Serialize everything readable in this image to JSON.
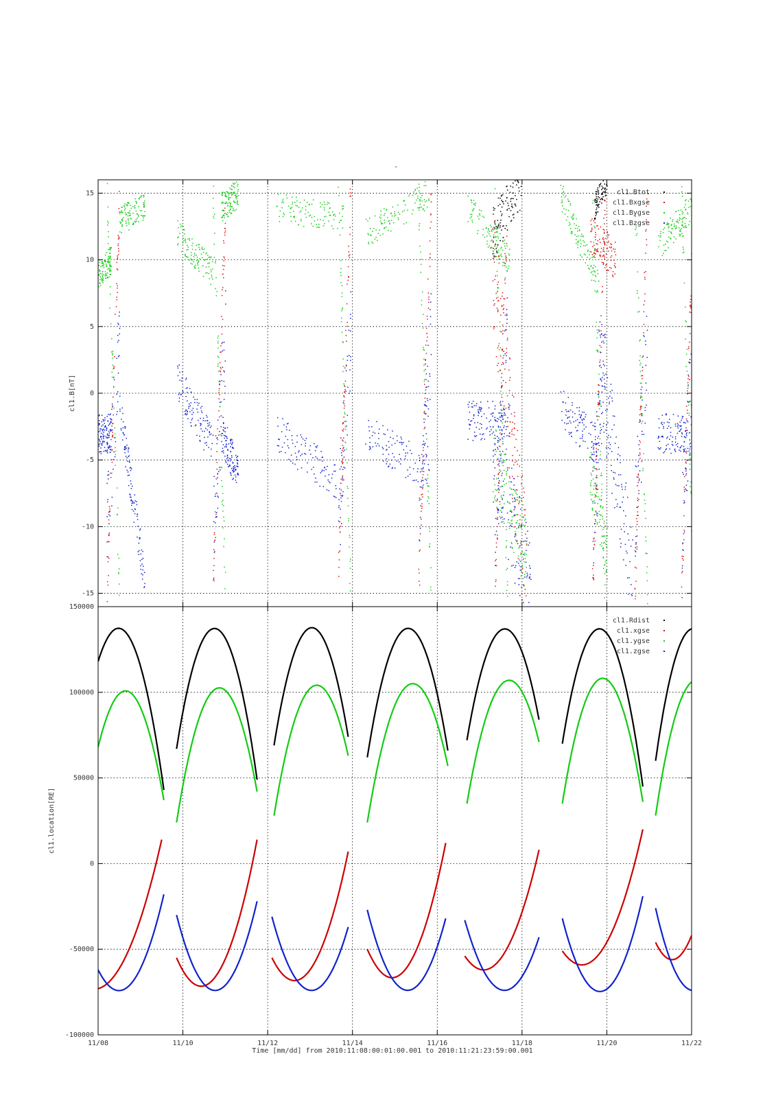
{
  "figure": {
    "title": "-",
    "xlabel": "Time [mm/dd]  from 2010:11:08:00:01:00.001  to  2010:11:21:23:59:00.001",
    "x_ticks": [
      "11/08",
      "11/10",
      "11/12",
      "11/14",
      "11/16",
      "11/18",
      "11/20",
      "11/22"
    ]
  },
  "chart_data": [
    {
      "type": "scatter",
      "title": "-",
      "ylabel": "cl1.B[nT]",
      "x_range_days": [
        8,
        22
      ],
      "ylim": [
        -16,
        16
      ],
      "y_ticks": [
        -15,
        -10,
        -5,
        0,
        5,
        10,
        15
      ],
      "grid": true,
      "legend_position": "top-right",
      "series": [
        {
          "name": "cl1.Btot",
          "color": "#000000"
        },
        {
          "name": "cl1.Bxgse",
          "color": "#dd1111"
        },
        {
          "name": "cl1.Bygse",
          "color": "#11cc11"
        },
        {
          "name": "cl1.Bzgse",
          "color": "#1122cc"
        }
      ],
      "note_values": {
        "Btot_hf_x": [
          17.3,
          18.0,
          19.7,
          20.0
        ],
        "green_segments_x": [
          [
            8.0,
            8.3
          ],
          [
            8.5,
            9.1
          ],
          [
            9.85,
            10.7
          ],
          [
            10.9,
            11.3
          ],
          [
            12.2,
            13.8
          ],
          [
            14.3,
            15.8
          ],
          [
            16.7,
            17.7
          ],
          [
            18.9,
            19.8
          ],
          [
            21.2,
            22.0
          ]
        ],
        "green_segment_y": [
          [
            9,
            10
          ],
          [
            13,
            14
          ],
          [
            12,
            9
          ],
          [
            14,
            15
          ],
          [
            14,
            13
          ],
          [
            12,
            15
          ],
          [
            14,
            10
          ],
          [
            15,
            8
          ],
          [
            11,
            14
          ]
        ],
        "blue_segment_y": [
          [
            -3,
            -3
          ],
          [
            -1,
            -14
          ],
          [
            1,
            -4
          ],
          [
            -3,
            -6
          ],
          [
            -3,
            -7
          ],
          [
            -3,
            -6
          ],
          [
            -2,
            -2
          ],
          [
            -1,
            -4
          ],
          [
            -3,
            -3
          ]
        ]
      }
    },
    {
      "type": "line",
      "title": "",
      "ylabel": "cl1.location[RE]",
      "x_range_days": [
        8,
        22
      ],
      "ylim": [
        -100000,
        150000
      ],
      "y_ticks": [
        -100000,
        -50000,
        0,
        50000,
        100000,
        150000
      ],
      "grid": true,
      "legend_position": "top-right",
      "series": [
        {
          "name": "cl1.Rdist",
          "color": "#000000",
          "segments": [
            [
              [
                8.0,
                118000
              ],
              [
                8.55,
                137000
              ],
              [
                9.55,
                43000
              ]
            ],
            [
              [
                9.85,
                67000
              ],
              [
                10.8,
                137000
              ],
              [
                11.75,
                49000
              ]
            ],
            [
              [
                12.15,
                69000
              ],
              [
                12.95,
                137000
              ],
              [
                13.9,
                74000
              ]
            ],
            [
              [
                14.35,
                62000
              ],
              [
                15.25,
                137000
              ],
              [
                16.25,
                66000
              ]
            ],
            [
              [
                16.7,
                72000
              ],
              [
                17.6,
                137000
              ],
              [
                18.4,
                84000
              ]
            ],
            [
              [
                18.95,
                70000
              ],
              [
                19.8,
                137000
              ],
              [
                20.85,
                45000
              ]
            ],
            [
              [
                21.15,
                60000
              ],
              [
                22.0,
                137000
              ],
              [
                22.3,
                130000
              ]
            ]
          ]
        },
        {
          "name": "cl1.xgse",
          "color": "#cc0000",
          "segments": [
            [
              [
                8.0,
                -73000
              ],
              [
                8.3,
                -68000
              ],
              [
                9.5,
                14000
              ]
            ],
            [
              [
                9.85,
                -55000
              ],
              [
                10.25,
                -70000
              ],
              [
                11.75,
                14000
              ]
            ],
            [
              [
                12.1,
                -55000
              ],
              [
                12.55,
                -68000
              ],
              [
                13.9,
                7000
              ]
            ],
            [
              [
                14.35,
                -50000
              ],
              [
                14.75,
                -65000
              ],
              [
                16.2,
                12000
              ]
            ],
            [
              [
                16.65,
                -54000
              ],
              [
                17.05,
                -62000
              ],
              [
                18.4,
                8000
              ]
            ],
            [
              [
                18.95,
                -51000
              ],
              [
                19.35,
                -59000
              ],
              [
                20.85,
                20000
              ]
            ],
            [
              [
                21.15,
                -46000
              ],
              [
                21.5,
                -56000
              ],
              [
                22.0,
                -42000
              ]
            ]
          ]
        },
        {
          "name": "cl1.ygse",
          "color": "#11cc11",
          "segments": [
            [
              [
                8.0,
                68000
              ],
              [
                8.75,
                100000
              ],
              [
                9.55,
                37000
              ]
            ],
            [
              [
                9.85,
                24000
              ],
              [
                10.95,
                102000
              ],
              [
                11.75,
                42000
              ]
            ],
            [
              [
                12.15,
                28000
              ],
              [
                13.2,
                104000
              ],
              [
                13.9,
                63000
              ]
            ],
            [
              [
                14.35,
                24000
              ],
              [
                15.45,
                105000
              ],
              [
                16.25,
                57000
              ]
            ],
            [
              [
                16.7,
                35000
              ],
              [
                17.7,
                107000
              ],
              [
                18.4,
                71000
              ]
            ],
            [
              [
                18.95,
                35000
              ],
              [
                19.95,
                108000
              ],
              [
                20.85,
                36000
              ]
            ],
            [
              [
                21.15,
                28000
              ],
              [
                22.0,
                106000
              ],
              [
                22.3,
                104000
              ]
            ]
          ]
        },
        {
          "name": "cl1.zgse",
          "color": "#1122cc",
          "segments": [
            [
              [
                8.0,
                -62000
              ],
              [
                8.55,
                -74000
              ],
              [
                9.55,
                -18000
              ]
            ],
            [
              [
                9.85,
                -30000
              ],
              [
                10.8,
                -74000
              ],
              [
                11.75,
                -22000
              ]
            ],
            [
              [
                12.1,
                -31000
              ],
              [
                13.0,
                -74000
              ],
              [
                13.9,
                -37000
              ]
            ],
            [
              [
                14.35,
                -27000
              ],
              [
                15.3,
                -74000
              ],
              [
                16.2,
                -32000
              ]
            ],
            [
              [
                16.65,
                -33000
              ],
              [
                17.6,
                -74000
              ],
              [
                18.4,
                -43000
              ]
            ],
            [
              [
                18.95,
                -32000
              ],
              [
                19.95,
                -74000
              ],
              [
                20.85,
                -19000
              ]
            ],
            [
              [
                21.15,
                -26000
              ],
              [
                22.0,
                -74000
              ],
              [
                22.3,
                -70000
              ]
            ]
          ]
        }
      ]
    }
  ]
}
